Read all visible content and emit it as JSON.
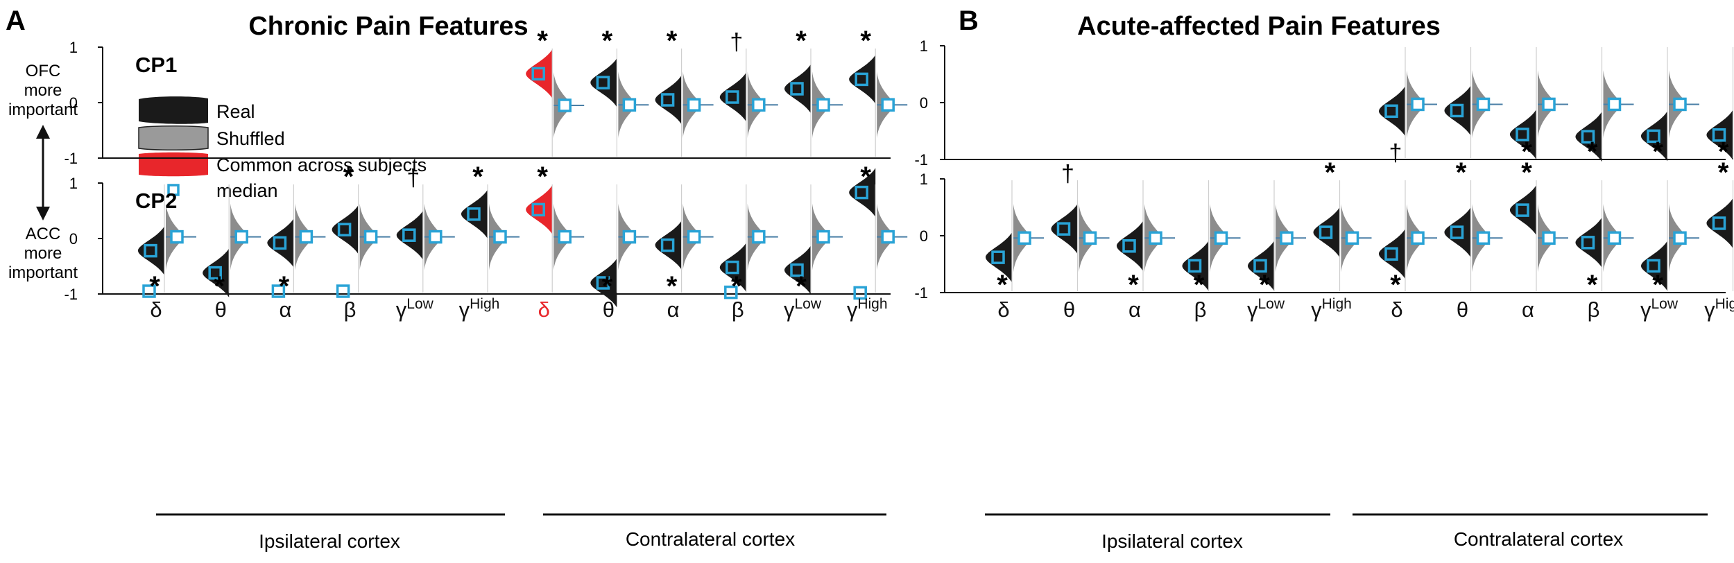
{
  "figure": {
    "y_side_label": {
      "top": [
        "OFC",
        "more",
        "important"
      ],
      "bottom": [
        "ACC",
        "more",
        "important"
      ]
    }
  },
  "chart_data": [
    {
      "panel": "A",
      "title": "Chronic Pain Features",
      "type": "violin",
      "ylim": [
        -1,
        1
      ],
      "yticks": [
        "1",
        "0",
        "-1"
      ],
      "x_tick_labels": [
        "δ",
        "θ",
        "α",
        "β",
        "γLow",
        "γHigh",
        "δ",
        "θ",
        "α",
        "β",
        "γLow",
        "γHigh"
      ],
      "x_tick_highlight": [
        false,
        false,
        false,
        false,
        false,
        false,
        true,
        false,
        false,
        false,
        false,
        false
      ],
      "groups": [
        "Ipsilateral cortex",
        "Contralateral cortex"
      ],
      "legend": {
        "real": "Real",
        "shuffled": "Shuffled",
        "common": "Common across subjects",
        "median": "median"
      },
      "colors": {
        "real": "#1a1a1a",
        "shuffled": "#8c8c8c",
        "common": "#e8262b",
        "median": "#29a3d6"
      },
      "rows": [
        {
          "label": "CP1",
          "real_median": [
            null,
            null,
            null,
            null,
            null,
            null,
            0.52,
            0.36,
            0.05,
            0.1,
            0.25,
            0.42
          ],
          "shuffled_median": [
            null,
            null,
            null,
            null,
            null,
            null,
            -0.05,
            -0.04,
            -0.04,
            -0.04,
            -0.04,
            -0.04
          ],
          "marks": [
            "",
            "",
            "",
            "",
            "",
            "",
            "*",
            "*",
            "*",
            "†",
            "*",
            "*"
          ],
          "common": [
            false,
            false,
            false,
            false,
            false,
            false,
            true,
            false,
            false,
            false,
            false,
            false
          ]
        },
        {
          "label": "CP2",
          "real_median": [
            -0.22,
            -0.62,
            -0.08,
            0.16,
            0.06,
            0.44,
            0.52,
            -0.8,
            -0.12,
            -0.52,
            -0.57,
            0.83
          ],
          "shuffled_median": [
            0.03,
            0.03,
            0.03,
            0.03,
            0.03,
            0.03,
            0.03,
            0.03,
            0.03,
            0.03,
            0.03,
            0.03
          ],
          "outlier_points": [
            -0.95,
            null,
            -0.95,
            -0.95,
            null,
            null,
            null,
            null,
            null,
            -0.97,
            null,
            -0.98
          ],
          "marks": [
            "*",
            "*",
            "*",
            "*",
            "†",
            "*",
            "*",
            "*",
            "*",
            "*",
            "*",
            "*"
          ],
          "mark_pos": [
            "bottom",
            "bottom",
            "bottom",
            "top",
            "top",
            "top",
            "top",
            "bottom",
            "bottom",
            "bottom",
            "bottom",
            "top"
          ],
          "common": [
            false,
            false,
            false,
            false,
            false,
            false,
            true,
            false,
            false,
            false,
            false,
            false
          ]
        }
      ]
    },
    {
      "panel": "B",
      "title": "Acute-affected Pain Features",
      "type": "violin",
      "ylim": [
        -1,
        1
      ],
      "yticks": [
        "1",
        "0",
        "-1"
      ],
      "x_tick_labels": [
        "δ",
        "θ",
        "α",
        "β",
        "γLow",
        "γHigh",
        "δ",
        "θ",
        "α",
        "β",
        "γLow",
        "γHigh"
      ],
      "groups": [
        "Ipsilateral cortex",
        "Contralateral cortex"
      ],
      "rows": [
        {
          "label": "",
          "real_median": [
            null,
            null,
            null,
            null,
            null,
            null,
            -0.15,
            -0.14,
            -0.56,
            -0.6,
            -0.59,
            -0.57
          ],
          "shuffled_median": [
            null,
            null,
            null,
            null,
            null,
            null,
            -0.03,
            -0.03,
            -0.03,
            -0.03,
            -0.03,
            -0.03
          ],
          "marks": [
            "",
            "",
            "",
            "",
            "",
            "",
            "†",
            "",
            "*",
            "*",
            "*",
            "*"
          ],
          "mark_pos": [
            "",
            "",
            "",
            "",
            "",
            "",
            "bottom",
            "",
            "bottom",
            "bottom",
            "bottom",
            "bottom"
          ]
        },
        {
          "label": "",
          "real_median": [
            -0.38,
            0.12,
            -0.18,
            -0.53,
            -0.53,
            0.06,
            -0.32,
            0.06,
            0.45,
            -0.12,
            -0.53,
            0.22
          ],
          "shuffled_median": [
            -0.04,
            -0.04,
            -0.04,
            -0.04,
            -0.04,
            -0.04,
            -0.04,
            -0.04,
            -0.04,
            -0.04,
            -0.04,
            -0.04
          ],
          "marks": [
            "*",
            "†",
            "*",
            "*",
            "*",
            "*",
            "*",
            "*",
            "*",
            "*",
            "*",
            "*"
          ],
          "mark_pos": [
            "bottom",
            "top",
            "bottom",
            "bottom",
            "bottom",
            "top",
            "bottom",
            "top",
            "top",
            "bottom",
            "bottom",
            "top"
          ]
        }
      ]
    }
  ]
}
